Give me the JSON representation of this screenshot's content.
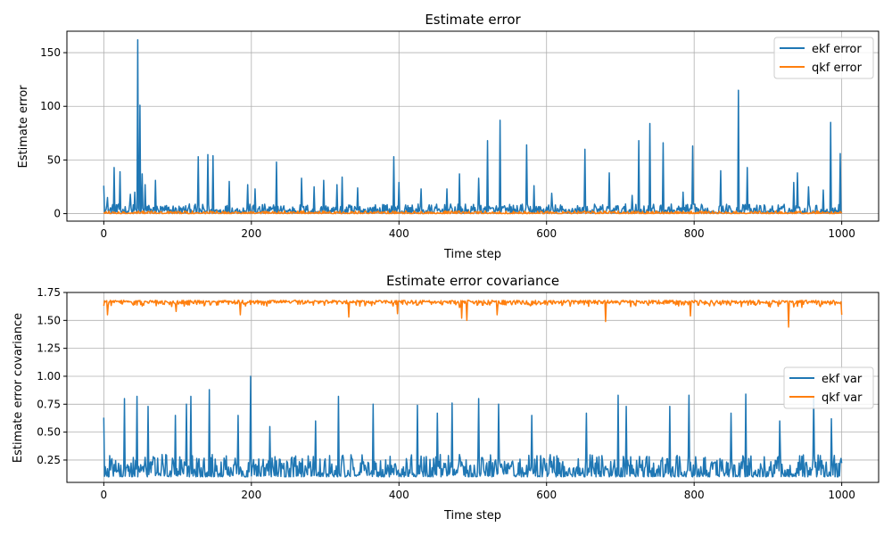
{
  "chart_data": [
    {
      "type": "line",
      "title": "Estimate error",
      "xlabel": "Time step",
      "ylabel": "Estimate error",
      "xlim": [
        -50,
        1050
      ],
      "ylim": [
        -7,
        170
      ],
      "xticks": [
        0,
        200,
        400,
        600,
        800,
        1000
      ],
      "yticks": [
        0,
        50,
        100,
        150
      ],
      "xtick_labels": [
        "0",
        "200",
        "400",
        "600",
        "800",
        "1000"
      ],
      "ytick_labels": [
        "0",
        "50",
        "100",
        "150"
      ],
      "grid": true,
      "legend": "top-right",
      "n_points": 1001,
      "series": [
        {
          "name": "ekf error",
          "color": "#1f77b4",
          "baseline": [
            0.5,
            9
          ],
          "spikes": [
            [
              0,
              26
            ],
            [
              5,
              15
            ],
            [
              14,
              43
            ],
            [
              22,
              39
            ],
            [
              36,
              18
            ],
            [
              42,
              20
            ],
            [
              46,
              162
            ],
            [
              49,
              101
            ],
            [
              52,
              37
            ],
            [
              56,
              27
            ],
            [
              70,
              31
            ],
            [
              128,
              53
            ],
            [
              141,
              55
            ],
            [
              148,
              54
            ],
            [
              170,
              30
            ],
            [
              195,
              27
            ],
            [
              205,
              23
            ],
            [
              234,
              48
            ],
            [
              268,
              33
            ],
            [
              285,
              25
            ],
            [
              298,
              31
            ],
            [
              316,
              27
            ],
            [
              323,
              34
            ],
            [
              344,
              24
            ],
            [
              393,
              53
            ],
            [
              400,
              29
            ],
            [
              430,
              23
            ],
            [
              465,
              23
            ],
            [
              482,
              37
            ],
            [
              508,
              33
            ],
            [
              520,
              68
            ],
            [
              537,
              87
            ],
            [
              573,
              64
            ],
            [
              583,
              26
            ],
            [
              607,
              19
            ],
            [
              652,
              60
            ],
            [
              685,
              38
            ],
            [
              716,
              17
            ],
            [
              725,
              68
            ],
            [
              740,
              84
            ],
            [
              758,
              66
            ],
            [
              785,
              20
            ],
            [
              798,
              63
            ],
            [
              836,
              40
            ],
            [
              860,
              115
            ],
            [
              872,
              43
            ],
            [
              935,
              29
            ],
            [
              940,
              38
            ],
            [
              955,
              25
            ],
            [
              975,
              22
            ],
            [
              985,
              85
            ],
            [
              998,
              56
            ]
          ]
        },
        {
          "name": "qkf error",
          "color": "#ff7f0e",
          "baseline": [
            0,
            2.5
          ],
          "spikes": []
        }
      ]
    },
    {
      "type": "line",
      "title": "Estimate error covariance",
      "xlabel": "Time step",
      "ylabel": "Estimate error covariance",
      "xlim": [
        -50,
        1050
      ],
      "ylim": [
        0.05,
        1.75
      ],
      "xticks": [
        0,
        200,
        400,
        600,
        800,
        1000
      ],
      "yticks": [
        0.25,
        0.5,
        0.75,
        1.0,
        1.25,
        1.5,
        1.75
      ],
      "xtick_labels": [
        "0",
        "200",
        "400",
        "600",
        "800",
        "1000"
      ],
      "ytick_labels": [
        "0.25",
        "0.50",
        "0.75",
        "1.00",
        "1.25",
        "1.50",
        "1.75"
      ],
      "grid": true,
      "legend": "center-right",
      "n_points": 1001,
      "series": [
        {
          "name": "ekf var",
          "color": "#1f77b4",
          "baseline": [
            0.1,
            0.3
          ],
          "spikes": [
            [
              0,
              0.63
            ],
            [
              28,
              0.8
            ],
            [
              45,
              0.82
            ],
            [
              60,
              0.73
            ],
            [
              97,
              0.65
            ],
            [
              112,
              0.75
            ],
            [
              118,
              0.82
            ],
            [
              143,
              0.88
            ],
            [
              182,
              0.65
            ],
            [
              199,
              1.0
            ],
            [
              225,
              0.55
            ],
            [
              287,
              0.6
            ],
            [
              318,
              0.82
            ],
            [
              365,
              0.75
            ],
            [
              425,
              0.74
            ],
            [
              452,
              0.67
            ],
            [
              472,
              0.76
            ],
            [
              508,
              0.8
            ],
            [
              535,
              0.75
            ],
            [
              580,
              0.65
            ],
            [
              654,
              0.67
            ],
            [
              697,
              0.83
            ],
            [
              708,
              0.73
            ],
            [
              767,
              0.73
            ],
            [
              793,
              0.83
            ],
            [
              850,
              0.67
            ],
            [
              870,
              0.84
            ],
            [
              916,
              0.6
            ],
            [
              962,
              0.82
            ],
            [
              986,
              0.62
            ]
          ]
        },
        {
          "name": "qkf var",
          "color": "#ff7f0e",
          "baseline": [
            1.61,
            1.68
          ],
          "dips": [
            [
              0,
              1.63
            ],
            [
              5,
              1.55
            ],
            [
              98,
              1.58
            ],
            [
              185,
              1.55
            ],
            [
              332,
              1.53
            ],
            [
              398,
              1.56
            ],
            [
              485,
              1.52
            ],
            [
              492,
              1.5
            ],
            [
              533,
              1.55
            ],
            [
              680,
              1.49
            ],
            [
              795,
              1.54
            ],
            [
              928,
              1.44
            ],
            [
              1000,
              1.55
            ]
          ]
        }
      ]
    }
  ]
}
